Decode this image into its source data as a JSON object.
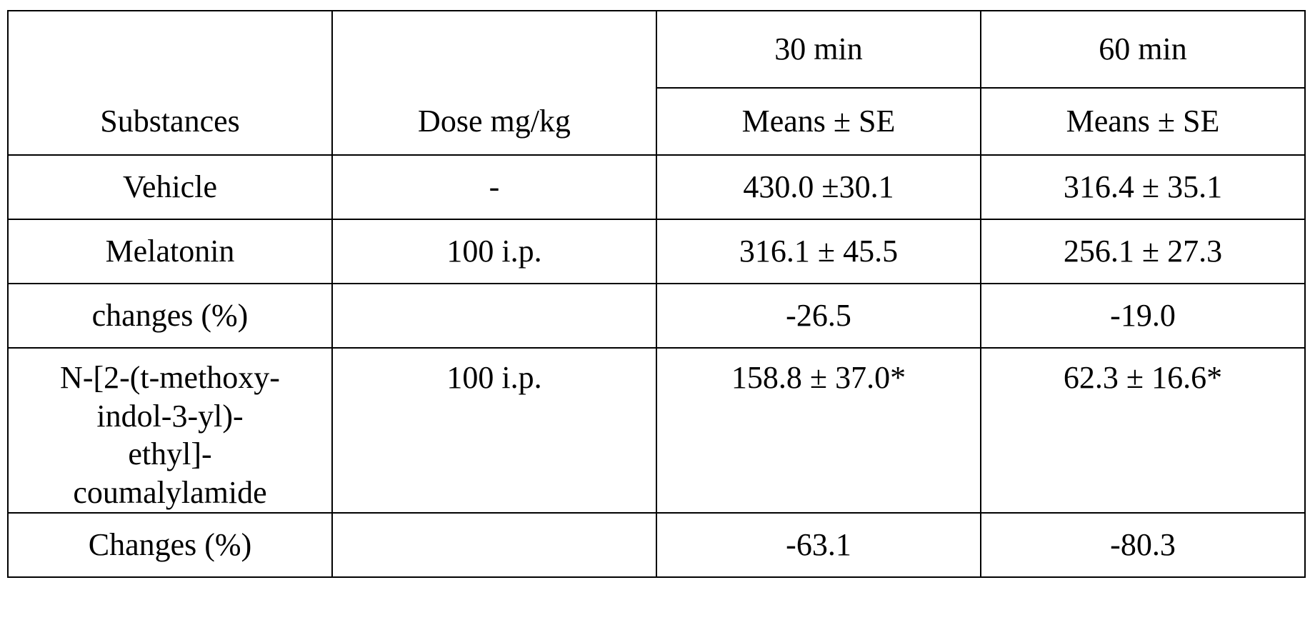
{
  "table": {
    "time_headers": [
      "",
      "",
      "30 min",
      "60 min"
    ],
    "column_headers": [
      "Substances",
      "Dose mg/kg",
      "Means ± SE",
      "Means ± SE"
    ],
    "rows": [
      [
        "Vehicle",
        "-",
        "430.0 ±30.1",
        "316.4 ± 35.1"
      ],
      [
        "Melatonin",
        "100 i.p.",
        "316.1 ± 45.5",
        "256.1 ± 27.3"
      ],
      [
        "changes (%)",
        "",
        "-26.5",
        "-19.0"
      ],
      [
        "N-[2-(t-methoxy-indol-3-yl)-ethyl]-coumalylamide",
        "100 i.p.",
        "158.8 ± 37.0*",
        "62.3 ± 16.6*"
      ],
      [
        "Changes (%)",
        "",
        "-63.1",
        "-80.3"
      ]
    ]
  }
}
